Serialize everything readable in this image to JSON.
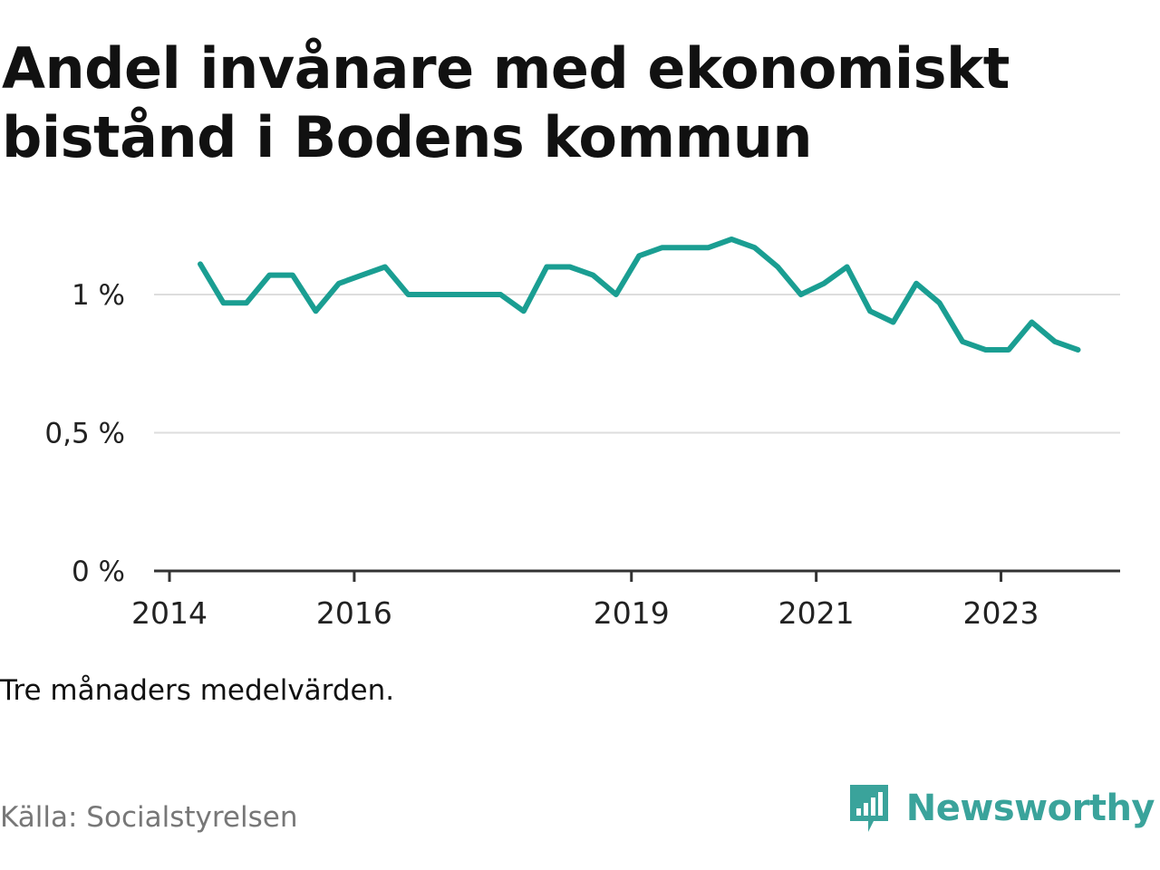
{
  "title": "Andel invånare med ekonomiskt bistånd i Bodens kommun",
  "note": "Tre månaders medelvärden.",
  "source": "Källa: Socialstyrelsen",
  "brand": {
    "name": "Newsworthy",
    "icon": "bar-chart-speech-bubble-icon",
    "color": "#3aa39b"
  },
  "chart_data": {
    "type": "line",
    "title": "Andel invånare med ekonomiskt bistånd i Bodens kommun",
    "xlabel": "",
    "ylabel": "",
    "x_ticks": [
      "2014",
      "2016",
      "2019",
      "2021",
      "2023"
    ],
    "y_ticks": [
      "0 %",
      "0,5 %",
      "1 %"
    ],
    "y_tick_values": [
      0,
      0.5,
      1.0
    ],
    "ylim": [
      0,
      1.25
    ],
    "grid": true,
    "line_color": "#1a9e92",
    "series": [
      {
        "x": [
          "2014-05",
          "2014-08",
          "2014-11",
          "2015-02",
          "2015-05",
          "2015-08",
          "2015-11",
          "2016-02",
          "2016-05",
          "2016-08",
          "2016-11",
          "2017-02",
          "2017-05",
          "2017-08",
          "2017-11",
          "2018-02",
          "2018-05",
          "2018-08",
          "2018-11",
          "2019-02",
          "2019-05",
          "2019-08",
          "2019-11",
          "2020-02",
          "2020-05",
          "2020-08",
          "2020-11",
          "2021-02",
          "2021-05",
          "2021-08",
          "2021-11",
          "2022-02",
          "2022-05",
          "2022-08",
          "2022-11",
          "2023-02",
          "2023-05",
          "2023-08",
          "2023-11"
        ],
        "values": [
          1.11,
          0.97,
          0.97,
          1.07,
          1.07,
          0.94,
          1.04,
          1.07,
          1.1,
          1.0,
          1.0,
          1.0,
          1.0,
          1.0,
          0.94,
          1.1,
          1.1,
          1.07,
          1.0,
          1.14,
          1.17,
          1.17,
          1.17,
          1.2,
          1.17,
          1.1,
          1.0,
          1.04,
          1.1,
          0.94,
          0.9,
          1.04,
          0.97,
          0.83,
          0.8,
          0.8,
          0.9,
          0.83,
          0.8
        ]
      }
    ]
  }
}
